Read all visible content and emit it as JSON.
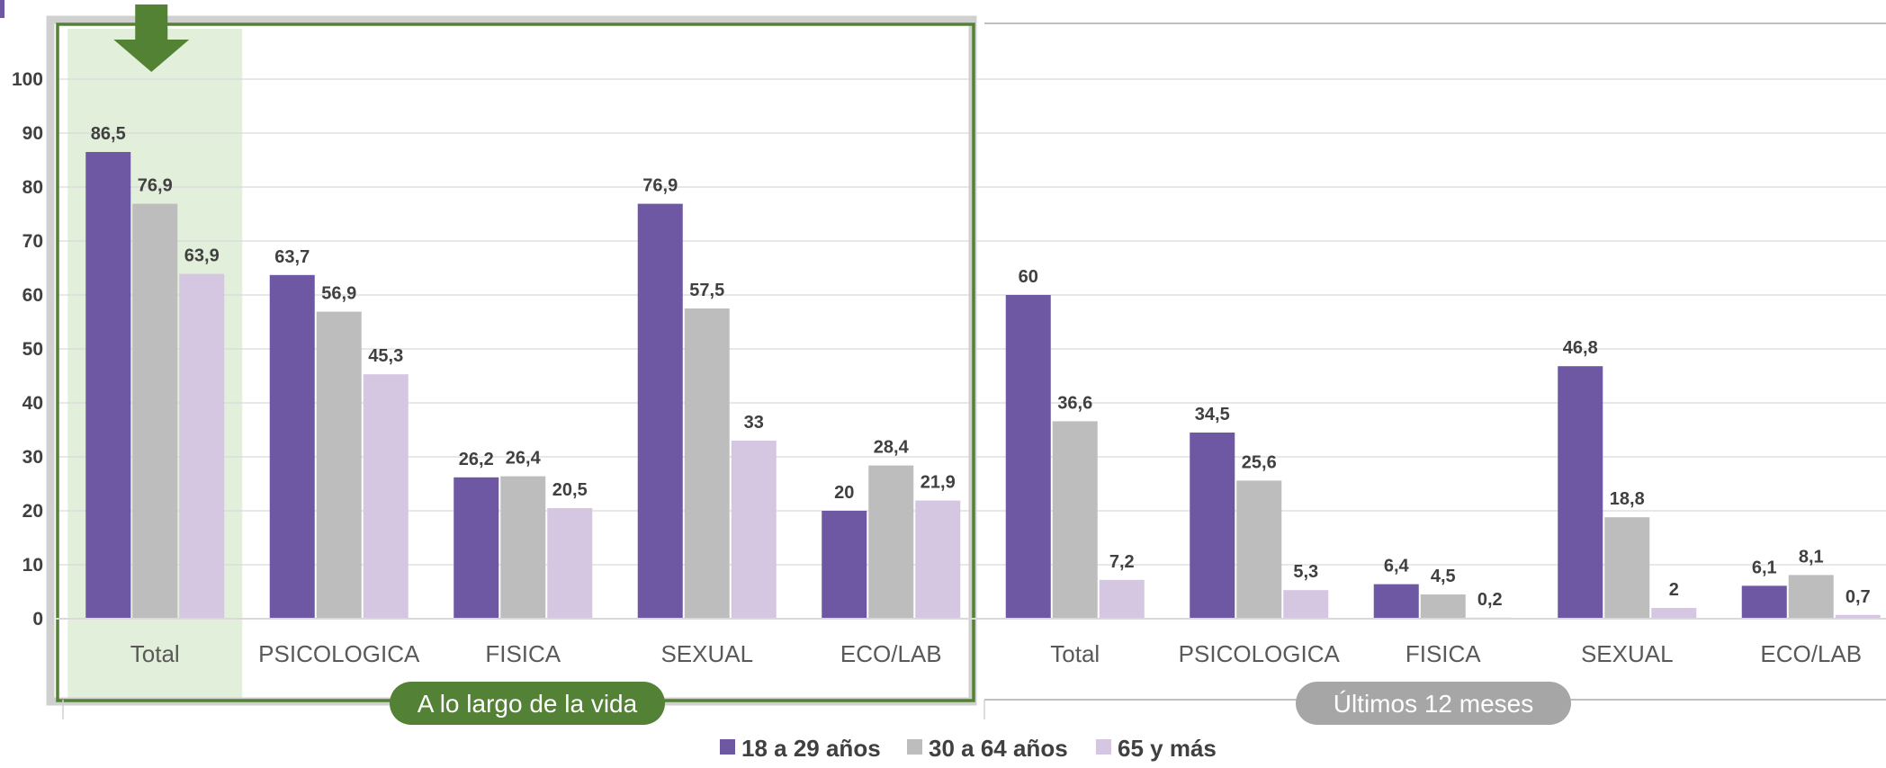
{
  "chart_data": {
    "type": "bar",
    "ylim": [
      0,
      100
    ],
    "yticks": [
      0,
      10,
      20,
      30,
      40,
      50,
      60,
      70,
      80,
      90,
      100
    ],
    "grid": true,
    "legend_position": "bottom",
    "series": [
      {
        "name": "18 a 29 años",
        "color": "#6E57A3"
      },
      {
        "name": "30 a 64 años",
        "color": "#BDBDBD"
      },
      {
        "name": "65 y más",
        "color": "#D5C6E1"
      }
    ],
    "panels": [
      {
        "label": "A lo largo de la vida",
        "label_color": "#538135",
        "highlight_color": "#E2EFDA",
        "highlight_category": "Total",
        "categories": [
          "Total",
          "PSICOLOGICA",
          "FISICA",
          "SEXUAL",
          "ECO/LAB"
        ],
        "values": [
          [
            86.5,
            76.9,
            63.9
          ],
          [
            63.7,
            56.9,
            45.3
          ],
          [
            26.2,
            26.4,
            20.5
          ],
          [
            76.9,
            57.5,
            33
          ],
          [
            20,
            28.4,
            21.9
          ]
        ],
        "value_labels": [
          [
            "86,5",
            "76,9",
            "63,9"
          ],
          [
            "63,7",
            "56,9",
            "45,3"
          ],
          [
            "26,2",
            "26,4",
            "20,5"
          ],
          [
            "76,9",
            "57,5",
            "33"
          ],
          [
            "20",
            "28,4",
            "21,9"
          ]
        ]
      },
      {
        "label": "Últimos 12 meses",
        "label_color": "#A6A6A6",
        "categories": [
          "Total",
          "PSICOLOGICA",
          "FISICA",
          "SEXUAL",
          "ECO/LAB"
        ],
        "values": [
          [
            60,
            36.6,
            7.2
          ],
          [
            34.5,
            25.6,
            5.3
          ],
          [
            6.4,
            4.5,
            0.2
          ],
          [
            46.8,
            18.8,
            2
          ],
          [
            6.1,
            8.1,
            0.7
          ]
        ],
        "value_labels": [
          [
            "60",
            "36,6",
            "7,2"
          ],
          [
            "34,5",
            "25,6",
            "5,3"
          ],
          [
            "6,4",
            "4,5",
            "0,2"
          ],
          [
            "46,8",
            "18,8",
            "2"
          ],
          [
            "6,1",
            "8,1",
            "0,7"
          ]
        ]
      }
    ]
  }
}
